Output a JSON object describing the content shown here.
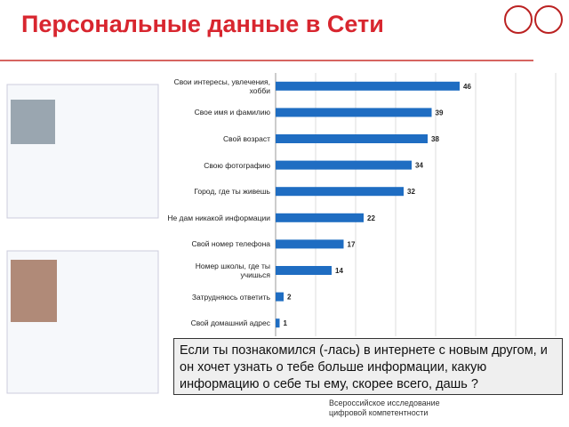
{
  "header": {
    "title": "Персональные данные в Сети"
  },
  "chart_data": {
    "type": "bar",
    "orientation": "horizontal",
    "categories": [
      "Свои интересы, увлечения, хобби",
      "Свое имя и  фамилию",
      "Свой возраст",
      "Свою фотографию",
      "Город, где ты живешь",
      "Не дам никакой информации",
      "Свой номер телефона",
      "Номер школы, где ты учишься",
      "Затрудняюсь ответить",
      "Свой домашний адрес"
    ],
    "values": [
      46,
      39,
      38,
      34,
      32,
      22,
      17,
      14,
      2,
      1
    ],
    "color": "#1f6dc2",
    "xlim": [
      0,
      70
    ],
    "xticks": [
      0,
      10,
      20,
      30,
      40,
      50,
      60,
      70
    ],
    "grid": true
  },
  "question": "Если ты познакомился (-лась) в интернете с новым другом, и он хочет узнать о тебе больше информации, какую информацию о себе ты ему, скорее всего, дашь ?",
  "footer": "Всероссийское исследование цифровой компетентности"
}
